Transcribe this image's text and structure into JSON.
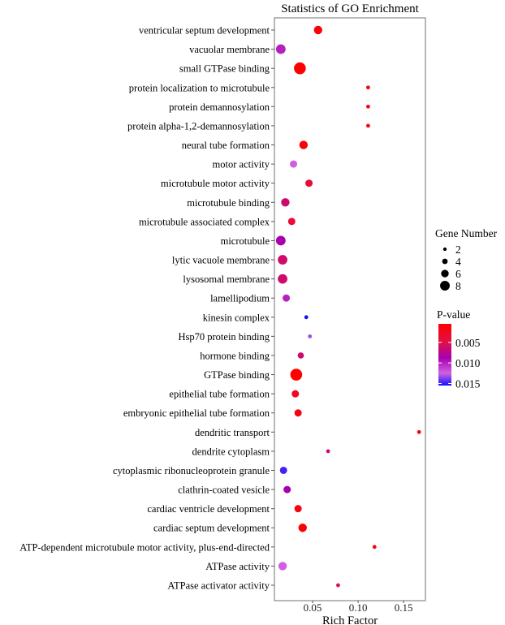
{
  "chart_data": {
    "type": "scatter",
    "title": "Statistics of GO Enrichment",
    "xlabel": "Rich Factor",
    "ylabel": "",
    "xlim": [
      0.008,
      0.174
    ],
    "xticks": [
      0.05,
      0.1,
      0.15
    ],
    "xtick_labels": [
      "0.05",
      "0.10",
      "0.15"
    ],
    "grid": false,
    "legend_position": "right",
    "size_legend": {
      "title": "Gene Number",
      "values": [
        2,
        4,
        6,
        8
      ],
      "labels": [
        "2",
        "4",
        "6",
        "8"
      ]
    },
    "color_legend": {
      "title": "P-value",
      "ticks": [
        0.005,
        0.01,
        0.015
      ],
      "tick_labels": [
        "0.005",
        "0.010",
        "0.015"
      ],
      "range": [
        0.0005,
        0.0155
      ],
      "colors": [
        "#ff0000",
        "#e0104a",
        "#a800b0",
        "#d060e0",
        "#1010ff"
      ]
    },
    "points": [
      {
        "term": "ventricular septum development",
        "rich_factor": 0.056,
        "gene_number": 6,
        "p_value": 0.0015
      },
      {
        "term": "vacuolar membrane",
        "rich_factor": 0.015,
        "gene_number": 7,
        "p_value": 0.009
      },
      {
        "term": "small GTPase binding",
        "rich_factor": 0.036,
        "gene_number": 9,
        "p_value": 0.001
      },
      {
        "term": "protein localization to microtubule",
        "rich_factor": 0.111,
        "gene_number": 2,
        "p_value": 0.002
      },
      {
        "term": "protein demannosylation",
        "rich_factor": 0.111,
        "gene_number": 2,
        "p_value": 0.002
      },
      {
        "term": "protein alpha-1,2-demannosylation",
        "rich_factor": 0.111,
        "gene_number": 2,
        "p_value": 0.002
      },
      {
        "term": "neural tube formation",
        "rich_factor": 0.04,
        "gene_number": 6,
        "p_value": 0.0015
      },
      {
        "term": "motor activity",
        "rich_factor": 0.029,
        "gene_number": 5,
        "p_value": 0.011
      },
      {
        "term": "microtubule motor activity",
        "rich_factor": 0.046,
        "gene_number": 5,
        "p_value": 0.004
      },
      {
        "term": "microtubule binding",
        "rich_factor": 0.02,
        "gene_number": 6,
        "p_value": 0.006
      },
      {
        "term": "microtubule associated complex",
        "rich_factor": 0.027,
        "gene_number": 5,
        "p_value": 0.004
      },
      {
        "term": "microtubule",
        "rich_factor": 0.015,
        "gene_number": 7,
        "p_value": 0.008
      },
      {
        "term": "lytic vacuole membrane",
        "rich_factor": 0.017,
        "gene_number": 7,
        "p_value": 0.006
      },
      {
        "term": "lysosomal membrane",
        "rich_factor": 0.017,
        "gene_number": 7,
        "p_value": 0.006
      },
      {
        "term": "lamellipodium",
        "rich_factor": 0.021,
        "gene_number": 5,
        "p_value": 0.009
      },
      {
        "term": "kinesin complex",
        "rich_factor": 0.043,
        "gene_number": 2,
        "p_value": 0.015
      },
      {
        "term": "Hsp70 protein binding",
        "rich_factor": 0.047,
        "gene_number": 2,
        "p_value": 0.012
      },
      {
        "term": "hormone binding",
        "rich_factor": 0.037,
        "gene_number": 4,
        "p_value": 0.006
      },
      {
        "term": "GTPase binding",
        "rich_factor": 0.032,
        "gene_number": 9,
        "p_value": 0.001
      },
      {
        "term": "epithelial tube formation",
        "rich_factor": 0.031,
        "gene_number": 5,
        "p_value": 0.003
      },
      {
        "term": "embryonic epithelial tube formation",
        "rich_factor": 0.034,
        "gene_number": 5,
        "p_value": 0.002
      },
      {
        "term": "dendritic transport",
        "rich_factor": 0.167,
        "gene_number": 2,
        "p_value": 0.002
      },
      {
        "term": "dendrite cytoplasm",
        "rich_factor": 0.067,
        "gene_number": 2,
        "p_value": 0.006
      },
      {
        "term": "cytoplasmic ribonucleoprotein granule",
        "rich_factor": 0.018,
        "gene_number": 5,
        "p_value": 0.014
      },
      {
        "term": "clathrin-coated vesicle",
        "rich_factor": 0.022,
        "gene_number": 5,
        "p_value": 0.008
      },
      {
        "term": "cardiac ventricle development",
        "rich_factor": 0.034,
        "gene_number": 5,
        "p_value": 0.002
      },
      {
        "term": "cardiac septum development",
        "rich_factor": 0.039,
        "gene_number": 6,
        "p_value": 0.001
      },
      {
        "term": "ATP-dependent microtubule motor activity, plus-end-directed",
        "rich_factor": 0.118,
        "gene_number": 2,
        "p_value": 0.002
      },
      {
        "term": "ATPase activity",
        "rich_factor": 0.017,
        "gene_number": 6,
        "p_value": 0.011
      },
      {
        "term": "ATPase activator activity",
        "rich_factor": 0.078,
        "gene_number": 2,
        "p_value": 0.005
      }
    ]
  }
}
